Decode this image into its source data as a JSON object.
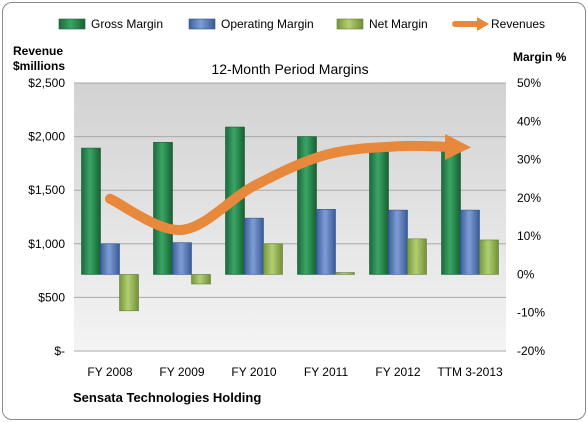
{
  "chart_data": {
    "type": "bar",
    "title": "12-Month Period Margins",
    "company": "Sensata Technologies Holding",
    "categories": [
      "FY 2008",
      "FY 2009",
      "FY 2010",
      "FY 2011",
      "FY 2012",
      "TTM 3-2013"
    ],
    "left_axis": {
      "label_line1": "Revenue",
      "label_line2": "$millions",
      "ticks": [
        {
          "value": 0,
          "label": "$-"
        },
        {
          "value": 500,
          "label": "$500"
        },
        {
          "value": 1000,
          "label": "$1,000"
        },
        {
          "value": 1500,
          "label": "$1,500"
        },
        {
          "value": 2000,
          "label": "$2,000"
        },
        {
          "value": 2500,
          "label": "$2,500"
        }
      ],
      "range": [
        0,
        2500
      ]
    },
    "right_axis": {
      "label": "Margin %",
      "ticks": [
        {
          "value": -20,
          "label": "-20%"
        },
        {
          "value": -10,
          "label": "-10%"
        },
        {
          "value": 0,
          "label": "0%"
        },
        {
          "value": 10,
          "label": "10%"
        },
        {
          "value": 20,
          "label": "20%"
        },
        {
          "value": 30,
          "label": "30%"
        },
        {
          "value": 40,
          "label": "40%"
        },
        {
          "value": 50,
          "label": "50%"
        }
      ],
      "range": [
        -20,
        50
      ]
    },
    "series": [
      {
        "name": "Gross Margin",
        "axis": "right",
        "color": "#217a45",
        "values": [
          33,
          34.5,
          38.5,
          36,
          34,
          34
        ]
      },
      {
        "name": "Operating Margin",
        "axis": "right",
        "color": "#4a6fb5",
        "values": [
          8,
          8.3,
          14.7,
          17,
          16.8,
          16.8
        ]
      },
      {
        "name": "Net Margin",
        "axis": "right",
        "color": "#8eb04a",
        "values": [
          -9.5,
          -2.5,
          8,
          0.5,
          9.3,
          9
        ]
      },
      {
        "name": "Revenues",
        "axis": "left",
        "color": "#e8883a",
        "type": "line",
        "values": [
          1420,
          1130,
          1540,
          1830,
          1910,
          1900
        ]
      }
    ],
    "legend_position": "top",
    "grid": true
  }
}
